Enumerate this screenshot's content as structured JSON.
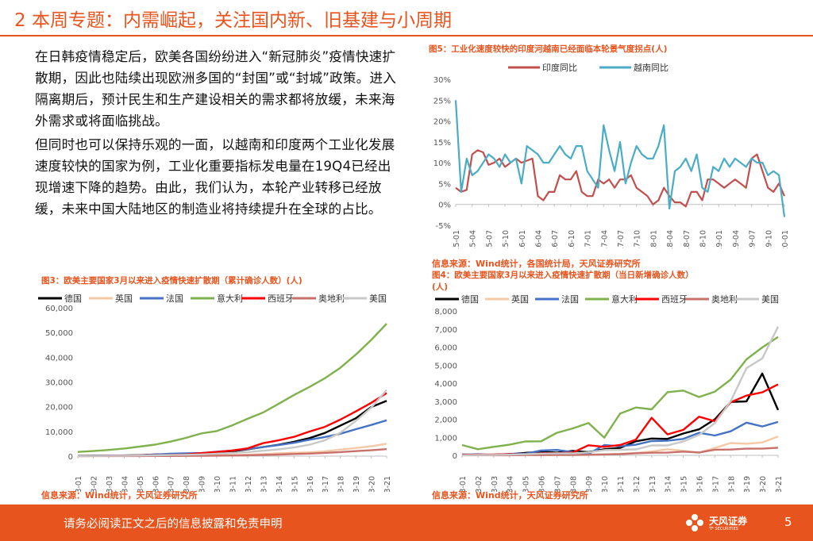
{
  "slide": {
    "title": "2 本周专题：内需崛起，关注国内新、旧基建与小周期",
    "paragraphs": [
      "在日韩疫情稳定后，欧美各国纷纷进入“新冠肺炎”疫情快速扩散期，因此也陆续出现欧洲多国的“封国”或“封城”政策。进入隔离期后，预计民生和生产建设相关的需求都将放缓，未来海外需求或将面临挑战。",
      "但同时也可以保持乐观的一面，以越南和印度两个工业化发展速度较快的国家为例，工业化重要指标发电量在19Q4已经出现增速下降的趋势。由此，我们认为，本轮产业转移已经放缓，未来中国大陆地区的制造业将持续提升在全球的占比。"
    ]
  },
  "figures": {
    "fig5": {
      "caption": "图5：工业化速度较快的印度河越南已经面临本轮景气度拐点(人)",
      "source": "信息来源：Wind统计，各国统计局，天风证券研究所"
    },
    "fig3": {
      "caption": "图3：欧美主要国家3月以来进入疫情快速扩散期（累计确诊人数）(人)",
      "source": "信息来源：Wind统计，天风证券研究所"
    },
    "fig4": {
      "caption_line1": "图4：欧美主要国家3月以来进入疫情快速扩散期（当日新增确诊人数）",
      "caption_line2": "(人)",
      "source": "信息来源：Wind统计，天风证券研究所"
    }
  },
  "footer": {
    "disclaimer": "请务必阅读正文之后的信息披露和免责申明",
    "brand": "天风证券",
    "brand_en": "TF SECURITIES",
    "page": "5"
  },
  "colors": {
    "accent": "#e8541d",
    "germany": "#000000",
    "uk": "#f6c9a6",
    "france": "#4472c4",
    "italy": "#7fb24c",
    "spain": "#ff0000",
    "austria": "#c8706a",
    "usa": "#c8c8c8",
    "india": "#c0504d",
    "vietnam": "#4bacc6"
  },
  "chart_data": [
    {
      "id": "fig5",
      "type": "line",
      "title": "工业化速度较快的印度河越南已经面临本轮景气度拐点(人)",
      "ylim": [
        -5,
        30
      ],
      "yticks": [
        "30%",
        "25%",
        "20%",
        "15%",
        "10%",
        "5%",
        "0%",
        "-5%"
      ],
      "ytick_values": [
        30,
        25,
        20,
        15,
        10,
        5,
        0,
        -5
      ],
      "x": [
        "15-01",
        "15-02",
        "15-03",
        "15-04",
        "15-05",
        "15-06",
        "15-07",
        "15-08",
        "15-09",
        "15-10",
        "15-11",
        "15-12",
        "16-01",
        "16-02",
        "16-03",
        "16-04",
        "16-05",
        "16-06",
        "16-07",
        "16-08",
        "16-09",
        "16-10",
        "16-11",
        "16-12",
        "17-01",
        "17-02",
        "17-03",
        "17-04",
        "17-05",
        "17-06",
        "17-07",
        "17-08",
        "17-09",
        "17-10",
        "17-11",
        "17-12",
        "18-01",
        "18-02",
        "18-03",
        "18-04",
        "18-05",
        "18-06",
        "18-07",
        "18-08",
        "18-09",
        "18-10",
        "18-11",
        "18-12",
        "19-01",
        "19-02",
        "19-03",
        "19-04",
        "19-05",
        "19-06",
        "19-07",
        "19-08",
        "19-09",
        "19-10",
        "19-11",
        "19-12",
        "20-01"
      ],
      "xticks": [
        "15-01",
        "15-04",
        "15-07",
        "15-10",
        "16-01",
        "16-04",
        "16-07",
        "16-10",
        "17-01",
        "17-04",
        "17-07",
        "17-10",
        "18-01",
        "18-04",
        "18-07",
        "18-10",
        "19-01",
        "19-04",
        "19-07",
        "19-10",
        "20-01"
      ],
      "series": [
        {
          "name": "印度同比",
          "color": "#c0504d",
          "values": [
            4,
            3,
            3.5,
            12,
            13,
            12.5,
            9.5,
            10,
            11,
            9,
            10,
            11,
            10,
            10.5,
            11,
            2,
            1,
            3,
            3,
            7,
            6,
            6,
            8,
            3,
            2,
            2,
            6,
            5,
            6,
            4,
            6,
            6,
            7,
            4,
            3,
            2,
            0,
            1,
            4,
            2,
            0.5,
            0.5,
            -0.5,
            3,
            3,
            1,
            6,
            6,
            5,
            4,
            5,
            6,
            5,
            4,
            11,
            12,
            8,
            4,
            3,
            5,
            2
          ]
        },
        {
          "name": "越南同比",
          "color": "#4bacc6",
          "values": [
            25,
            3,
            11,
            7,
            8,
            10,
            12,
            11,
            9,
            12,
            10,
            11,
            5,
            14,
            13,
            12,
            10,
            10,
            12,
            14,
            12,
            11,
            14,
            14,
            8,
            6,
            4,
            19,
            13,
            8,
            15,
            5,
            10,
            14,
            12,
            11,
            11,
            14,
            19,
            -1,
            8,
            9,
            11,
            8,
            12,
            4,
            3,
            9,
            8,
            11,
            9,
            11,
            10,
            9,
            11,
            10,
            10,
            7,
            8,
            7,
            -3
          ]
        }
      ]
    },
    {
      "id": "fig3",
      "type": "line",
      "title": "欧美主要国家3月以来进入疫情快速扩散期（累计确诊人数）(人)",
      "ylim": [
        0,
        60000
      ],
      "yticks": [
        "60,000",
        "50,000",
        "40,000",
        "30,000",
        "20,000",
        "10,000",
        "0"
      ],
      "ytick_values": [
        60000,
        50000,
        40000,
        30000,
        20000,
        10000,
        0
      ],
      "x": [
        "03-01",
        "03-02",
        "03-03",
        "03-04",
        "03-05",
        "03-06",
        "03-07",
        "03-08",
        "03-09",
        "03-10",
        "03-11",
        "03-12",
        "03-13",
        "03-14",
        "03-15",
        "03-16",
        "03-17",
        "03-18",
        "03-19",
        "03-20",
        "03-21"
      ],
      "series": [
        {
          "name": "德国",
          "color": "#000000",
          "values": [
            130,
            160,
            200,
            260,
            400,
            670,
            800,
            1040,
            1220,
            1560,
            1970,
            2750,
            3680,
            4590,
            5810,
            7270,
            9360,
            12330,
            15320,
            19850,
            22360
          ]
        },
        {
          "name": "英国",
          "color": "#f6c9a6",
          "values": [
            36,
            40,
            51,
            85,
            115,
            163,
            206,
            273,
            321,
            373,
            456,
            590,
            800,
            1140,
            1390,
            1540,
            1950,
            2630,
            3270,
            3980,
            5020
          ]
        },
        {
          "name": "法国",
          "color": "#4472c4",
          "values": [
            130,
            190,
            210,
            290,
            380,
            650,
            950,
            1130,
            1210,
            1780,
            2280,
            2870,
            3660,
            4470,
            5380,
            6630,
            7730,
            9060,
            10870,
            12610,
            14460
          ]
        },
        {
          "name": "意大利",
          "color": "#7fb24c",
          "values": [
            1700,
            2040,
            2500,
            3090,
            3860,
            4640,
            5880,
            7380,
            9170,
            10150,
            12460,
            15110,
            17660,
            21160,
            24750,
            27980,
            31510,
            35710,
            41040,
            47020,
            53580
          ]
        },
        {
          "name": "西班牙",
          "color": "#ff0000",
          "values": [
            84,
            120,
            165,
            228,
            282,
            401,
            525,
            674,
            1230,
            1700,
            2280,
            3150,
            5230,
            6390,
            7800,
            9940,
            11830,
            14770,
            18080,
            21570,
            25500
          ]
        },
        {
          "name": "奥地利",
          "color": "#c8706a",
          "values": [
            10,
            18,
            24,
            30,
            41,
            55,
            79,
            102,
            131,
            182,
            246,
            361,
            504,
            655,
            860,
            1020,
            1330,
            1650,
            2020,
            2390,
            2810
          ]
        },
        {
          "name": "美国",
          "color": "#c8c8c8",
          "values": [
            75,
            100,
            124,
            158,
            221,
            319,
            435,
            541,
            704,
            994,
            1301,
            1630,
            2180,
            2730,
            3500,
            4630,
            6420,
            9420,
            14250,
            19620,
            26750
          ]
        }
      ]
    },
    {
      "id": "fig4",
      "type": "line",
      "title": "欧美主要国家3月以来进入疫情快速扩散期（当日新增确诊人数）(人)",
      "ylim": [
        0,
        8000
      ],
      "yticks": [
        "8,000",
        "7,000",
        "6,000",
        "5,000",
        "4,000",
        "3,000",
        "2,000",
        "1,000",
        "0"
      ],
      "ytick_values": [
        8000,
        7000,
        6000,
        5000,
        4000,
        3000,
        2000,
        1000,
        0
      ],
      "x": [
        "03-01",
        "03-02",
        "03-03",
        "03-04",
        "03-05",
        "03-06",
        "03-07",
        "03-08",
        "03-09",
        "03-10",
        "03-11",
        "03-12",
        "03-13",
        "03-14",
        "03-15",
        "03-16",
        "03-17",
        "03-18",
        "03-19",
        "03-20",
        "03-21"
      ],
      "series": [
        {
          "name": "德国",
          "color": "#000000",
          "values": [
            50,
            30,
            40,
            60,
            130,
            200,
            150,
            240,
            180,
            340,
            410,
            780,
            930,
            910,
            1210,
            1440,
            2000,
            2960,
            2990,
            4530,
            2510
          ]
        },
        {
          "name": "英国",
          "color": "#f6c9a6",
          "values": [
            10,
            5,
            12,
            34,
            30,
            48,
            43,
            67,
            48,
            52,
            83,
            134,
            210,
            340,
            250,
            150,
            410,
            680,
            640,
            710,
            1040
          ]
        },
        {
          "name": "法国",
          "color": "#4472c4",
          "values": [
            30,
            60,
            20,
            80,
            90,
            270,
            300,
            180,
            80,
            570,
            500,
            590,
            790,
            810,
            910,
            1250,
            1100,
            1330,
            1810,
            1600,
            1850
          ]
        },
        {
          "name": "意大利",
          "color": "#7fb24c",
          "values": [
            570,
            340,
            470,
            590,
            770,
            780,
            1250,
            1490,
            1790,
            980,
            2310,
            2650,
            2550,
            3500,
            3590,
            3230,
            3530,
            4200,
            5320,
            5980,
            6560
          ]
        },
        {
          "name": "西班牙",
          "color": "#ff0000",
          "values": [
            20,
            40,
            40,
            60,
            50,
            120,
            120,
            150,
            560,
            470,
            570,
            870,
            2080,
            1160,
            1410,
            2140,
            1890,
            2940,
            3310,
            3490,
            3930
          ]
        },
        {
          "name": "奥地利",
          "color": "#c8706a",
          "values": [
            5,
            8,
            6,
            6,
            11,
            14,
            24,
            23,
            29,
            51,
            64,
            115,
            143,
            151,
            205,
            160,
            310,
            320,
            370,
            370,
            420
          ]
        },
        {
          "name": "美国",
          "color": "#c8c8c8",
          "values": [
            5,
            25,
            24,
            34,
            63,
            98,
            116,
            106,
            163,
            290,
            307,
            329,
            550,
            550,
            770,
            1130,
            1790,
            3000,
            4830,
            5370,
            7130
          ]
        }
      ]
    }
  ]
}
